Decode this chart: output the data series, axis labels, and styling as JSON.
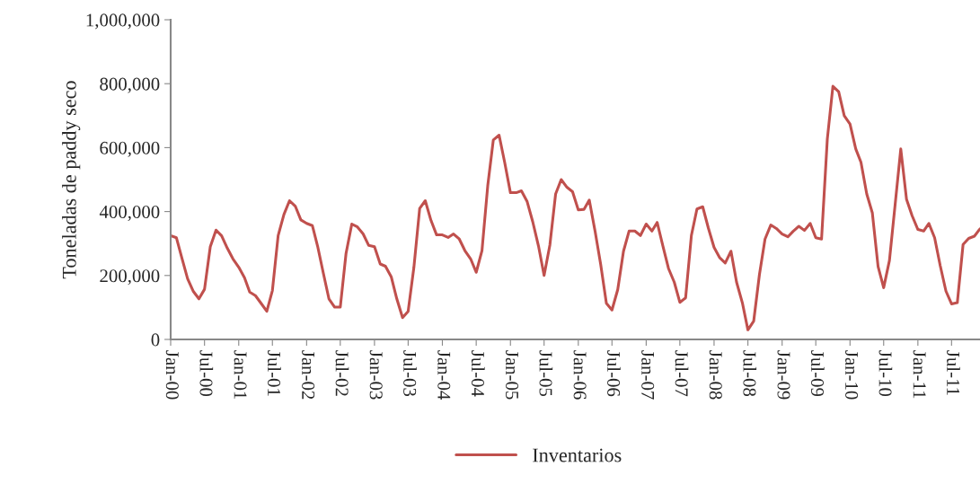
{
  "chart_data": {
    "type": "line",
    "ylabel": "Toneladas de paddy seco",
    "legend": "bottom",
    "grid": false,
    "marker": "none",
    "line_style": "solid",
    "ylim": [
      0,
      1000000
    ],
    "yticks": [
      {
        "value": 0,
        "label": "0"
      },
      {
        "value": 200000,
        "label": "200,000"
      },
      {
        "value": 400000,
        "label": "400,000"
      },
      {
        "value": 600000,
        "label": "600,000"
      },
      {
        "value": 800000,
        "label": "800,000"
      },
      {
        "value": 1000000,
        "label": "1,000,000"
      }
    ],
    "xlim": [
      "2000-01",
      "2011-12"
    ],
    "xticks": [
      {
        "value": "2000-01",
        "label": "Jan-00"
      },
      {
        "value": "2000-07",
        "label": "Jul-00"
      },
      {
        "value": "2001-01",
        "label": "Jan-01"
      },
      {
        "value": "2001-07",
        "label": "Jul-01"
      },
      {
        "value": "2002-01",
        "label": "Jan-02"
      },
      {
        "value": "2002-07",
        "label": "Jul-02"
      },
      {
        "value": "2003-01",
        "label": "Jan-03"
      },
      {
        "value": "2003-07",
        "label": "Jul-03"
      },
      {
        "value": "2004-01",
        "label": "Jan-04"
      },
      {
        "value": "2004-07",
        "label": "Jul-04"
      },
      {
        "value": "2005-01",
        "label": "Jan-05"
      },
      {
        "value": "2005-07",
        "label": "Jul-05"
      },
      {
        "value": "2006-01",
        "label": "Jan-06"
      },
      {
        "value": "2006-07",
        "label": "Jul-06"
      },
      {
        "value": "2007-01",
        "label": "Jan-07"
      },
      {
        "value": "2007-07",
        "label": "Jul-07"
      },
      {
        "value": "2008-01",
        "label": "Jan-08"
      },
      {
        "value": "2008-07",
        "label": "Jul-08"
      },
      {
        "value": "2009-01",
        "label": "Jan-09"
      },
      {
        "value": "2009-07",
        "label": "Jul-09"
      },
      {
        "value": "2010-01",
        "label": "Jan-10"
      },
      {
        "value": "2010-07",
        "label": "Jul-10"
      },
      {
        "value": "2011-01",
        "label": "Jan-11"
      },
      {
        "value": "2011-07",
        "label": "Jul-11"
      }
    ],
    "x": [
      "2000-01",
      "2000-02",
      "2000-03",
      "2000-04",
      "2000-05",
      "2000-06",
      "2000-07",
      "2000-08",
      "2000-09",
      "2000-10",
      "2000-11",
      "2000-12",
      "2001-01",
      "2001-02",
      "2001-03",
      "2001-04",
      "2001-05",
      "2001-06",
      "2001-07",
      "2001-08",
      "2001-09",
      "2001-10",
      "2001-11",
      "2001-12",
      "2002-01",
      "2002-02",
      "2002-03",
      "2002-04",
      "2002-05",
      "2002-06",
      "2002-07",
      "2002-08",
      "2002-09",
      "2002-10",
      "2002-11",
      "2002-12",
      "2003-01",
      "2003-02",
      "2003-03",
      "2003-04",
      "2003-05",
      "2003-06",
      "2003-07",
      "2003-08",
      "2003-09",
      "2003-10",
      "2003-11",
      "2003-12",
      "2004-01",
      "2004-02",
      "2004-03",
      "2004-04",
      "2004-05",
      "2004-06",
      "2004-07",
      "2004-08",
      "2004-09",
      "2004-10",
      "2004-11",
      "2004-12",
      "2005-01",
      "2005-02",
      "2005-03",
      "2005-04",
      "2005-05",
      "2005-06",
      "2005-07",
      "2005-08",
      "2005-09",
      "2005-10",
      "2005-11",
      "2005-12",
      "2006-01",
      "2006-02",
      "2006-03",
      "2006-04",
      "2006-05",
      "2006-06",
      "2006-07",
      "2006-08",
      "2006-09",
      "2006-10",
      "2006-11",
      "2006-12",
      "2007-01",
      "2007-02",
      "2007-03",
      "2007-04",
      "2007-05",
      "2007-06",
      "2007-07",
      "2007-08",
      "2007-09",
      "2007-10",
      "2007-11",
      "2007-12",
      "2008-01",
      "2008-02",
      "2008-03",
      "2008-04",
      "2008-05",
      "2008-06",
      "2008-07",
      "2008-08",
      "2008-09",
      "2008-10",
      "2008-11",
      "2008-12",
      "2009-01",
      "2009-02",
      "2009-03",
      "2009-04",
      "2009-05",
      "2009-06",
      "2009-07",
      "2009-08",
      "2009-09",
      "2009-10",
      "2009-11",
      "2009-12",
      "2010-01",
      "2010-02",
      "2010-03",
      "2010-04",
      "2010-05",
      "2010-06",
      "2010-07",
      "2010-08",
      "2010-09",
      "2010-10",
      "2010-11",
      "2010-12",
      "2011-01",
      "2011-02",
      "2011-03",
      "2011-04",
      "2011-05",
      "2011-06",
      "2011-07",
      "2011-08",
      "2011-09",
      "2011-10",
      "2011-11",
      "2011-12"
    ],
    "series": [
      {
        "name": "Inventarios",
        "color": "#c0504d",
        "values": [
          325000,
          318000,
          255000,
          190000,
          151000,
          127000,
          157000,
          290000,
          342000,
          324000,
          285000,
          252000,
          226000,
          193000,
          148000,
          137000,
          113000,
          88000,
          153000,
          325000,
          391000,
          434000,
          417000,
          374000,
          363000,
          356000,
          292000,
          207000,
          127000,
          101000,
          101000,
          269000,
          361000,
          352000,
          330000,
          294000,
          290000,
          236000,
          229000,
          196000,
          127000,
          68000,
          88000,
          226000,
          410000,
          434000,
          372000,
          327000,
          327000,
          319000,
          330000,
          314000,
          278000,
          252000,
          210000,
          278000,
          481000,
          624000,
          639000,
          554000,
          459000,
          459000,
          465000,
          431000,
          368000,
          292000,
          200000,
          295000,
          455000,
          500000,
          476000,
          462000,
          405000,
          407000,
          436000,
          339000,
          236000,
          113000,
          92000,
          156000,
          276000,
          339000,
          339000,
          325000,
          361000,
          339000,
          366000,
          292000,
          222000,
          179000,
          116000,
          130000,
          325000,
          408000,
          415000,
          349000,
          288000,
          255000,
          239000,
          276000,
          179000,
          115000,
          30000,
          57000,
          203000,
          314000,
          358000,
          347000,
          330000,
          321000,
          338000,
          354000,
          341000,
          363000,
          318000,
          314000,
          627000,
          792000,
          775000,
          700000,
          674000,
          596000,
          554000,
          455000,
          396000,
          228000,
          162000,
          247000,
          424000,
          596000,
          438000,
          387000,
          344000,
          339000,
          363000,
          318000,
          231000,
          151000,
          111000,
          115000,
          297000,
          316000,
          323000,
          346000
        ]
      }
    ]
  }
}
